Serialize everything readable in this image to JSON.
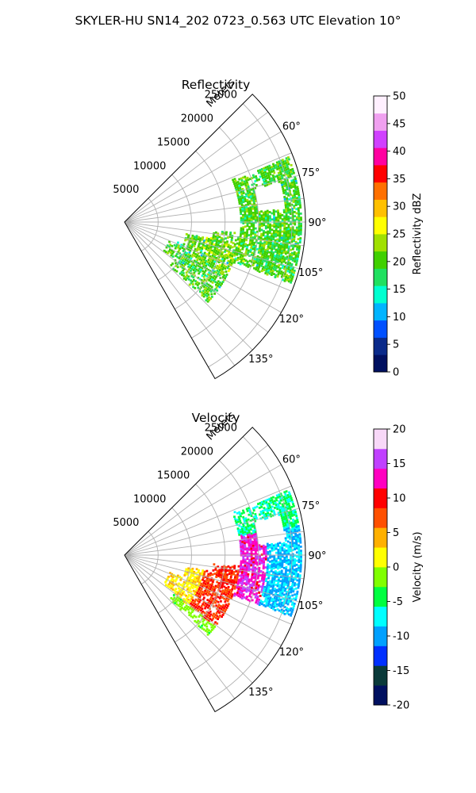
{
  "figure": {
    "title": "SKYLER-HU  SN14_202  0723_0.563 UTC Elevation 10°"
  },
  "chart_data": [
    {
      "type": "heatmap",
      "title": "Reflectivity",
      "projection": "polar-sector",
      "theta_ticks": [
        "60°",
        "75°",
        "90°",
        "105°",
        "120°",
        "135°"
      ],
      "theta_range_deg": [
        45,
        150
      ],
      "r_label": "Meters",
      "r_ticks": [
        "5000",
        "10000",
        "15000",
        "20000",
        "25000"
      ],
      "r_range": [
        0,
        27000
      ],
      "grid": true,
      "colorbar": {
        "label": "Reflectivity dBZ",
        "ticks": [
          "0",
          "5",
          "10",
          "15",
          "20",
          "25",
          "30",
          "35",
          "40",
          "45",
          "50"
        ],
        "range": [
          0,
          50
        ],
        "colors": [
          "#001060",
          "#0a2a8a",
          "#0050ff",
          "#00b4ff",
          "#00ffd0",
          "#20e060",
          "#40d000",
          "#a0e000",
          "#ffff00",
          "#ffc000",
          "#ff7000",
          "#ff0000",
          "#ff00a0",
          "#d040ff",
          "#f0a0f0",
          "#fff0ff"
        ]
      },
      "echo_summary": {
        "dominant_values_dBZ": [
          15,
          25
        ],
        "peak_dBZ": 27,
        "azimuth_span_deg": [
          68,
          135
        ],
        "range_span_m": [
          7000,
          26500
        ]
      }
    },
    {
      "type": "heatmap",
      "title": "Velocity",
      "projection": "polar-sector",
      "theta_ticks": [
        "60°",
        "75°",
        "90°",
        "105°",
        "120°",
        "135°"
      ],
      "theta_range_deg": [
        45,
        150
      ],
      "r_label": "Meters",
      "r_ticks": [
        "5000",
        "10000",
        "15000",
        "20000",
        "25000"
      ],
      "r_range": [
        0,
        27000
      ],
      "grid": true,
      "colorbar": {
        "label": "Velocity (m/s)",
        "ticks": [
          "-20",
          "-15",
          "-10",
          "-5",
          "0",
          "5",
          "10",
          "15",
          "20"
        ],
        "range": [
          -20,
          20
        ],
        "colors": [
          "#001060",
          "#0a3a3a",
          "#0030ff",
          "#00a0ff",
          "#00ffff",
          "#00ff40",
          "#80ff00",
          "#ffff00",
          "#ffb000",
          "#ff5000",
          "#ff0000",
          "#ff00c0",
          "#c040ff",
          "#f8d8f8"
        ]
      },
      "echo_summary": {
        "near_range_m_per_s": [
          0,
          5
        ],
        "mid_range_m_per_s": [
          7,
          15
        ],
        "far_range_m_per_s": [
          -12,
          -8
        ],
        "azimuth_span_deg": [
          68,
          135
        ],
        "range_span_m": [
          7000,
          26500
        ]
      }
    }
  ]
}
